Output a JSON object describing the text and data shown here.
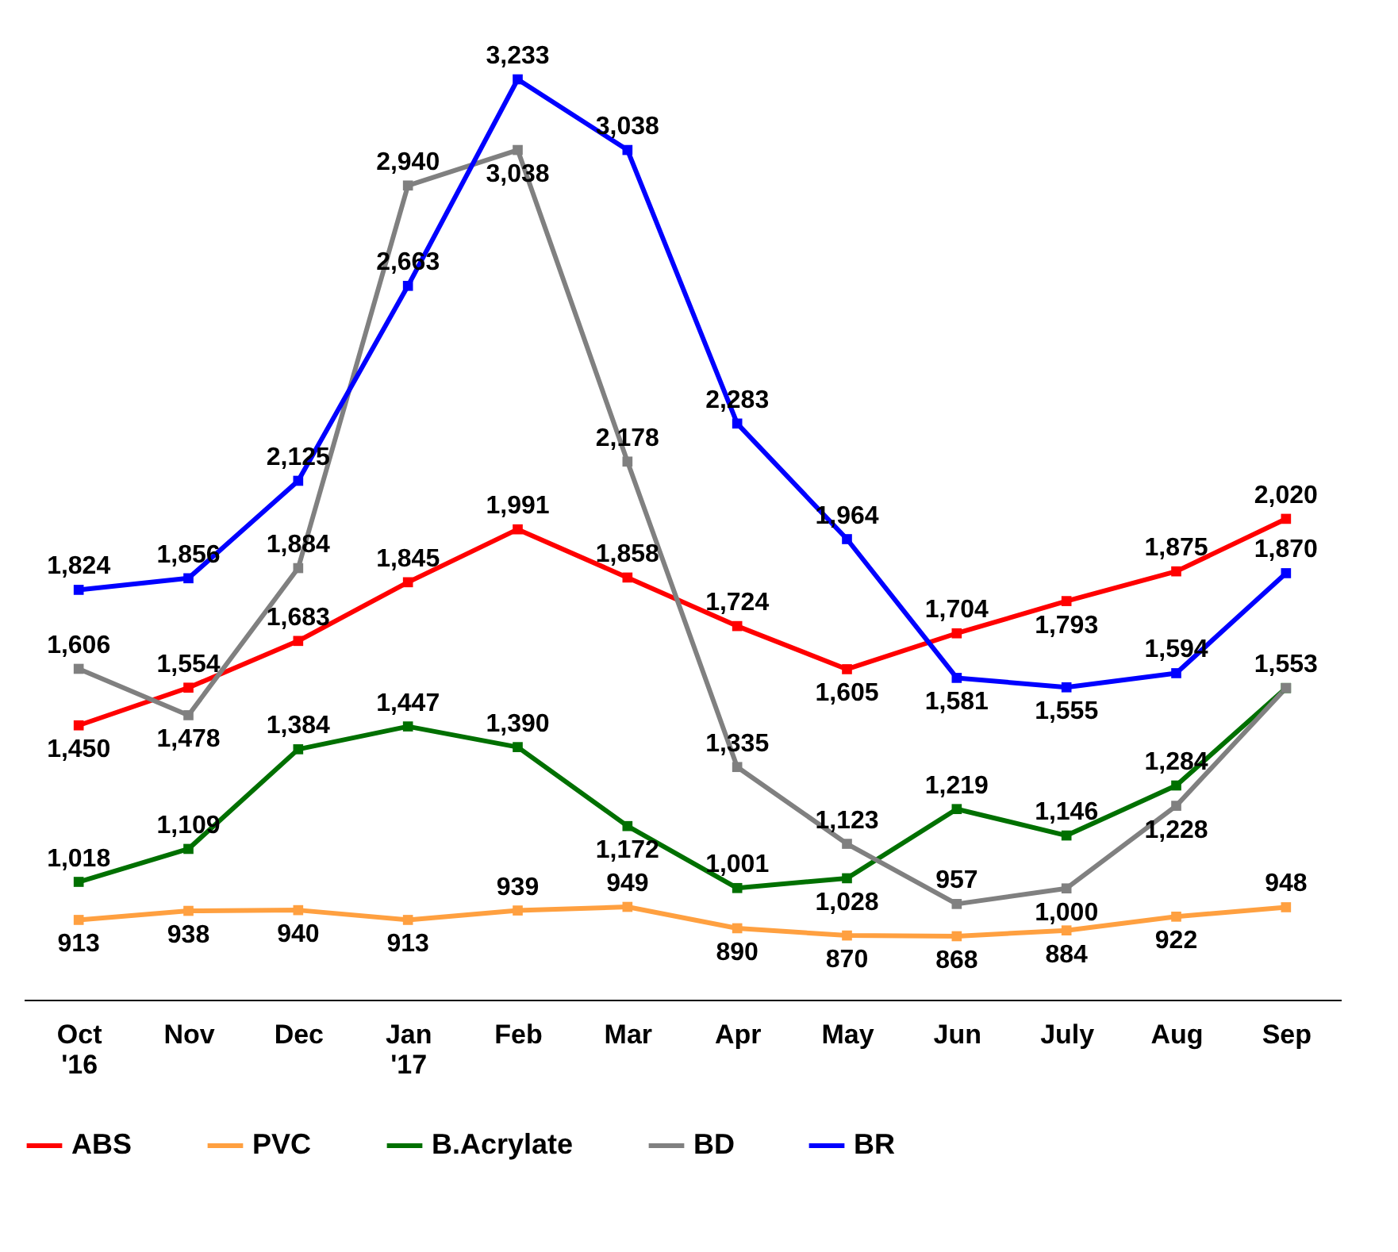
{
  "chart_data": {
    "type": "line",
    "categories": [
      "Oct '16",
      "Nov",
      "Dec",
      "Jan '17",
      "Feb",
      "Mar",
      "Apr",
      "May",
      "Jun",
      "July",
      "Aug",
      "Sep"
    ],
    "series": [
      {
        "name": "ABS",
        "color": "#ff0000",
        "values": [
          1450,
          1554,
          1683,
          1845,
          1991,
          1858,
          1724,
          1605,
          1704,
          1793,
          1875,
          2020
        ],
        "value_labels": [
          "1,450",
          "1,554",
          "1,683",
          "1,845",
          "1,991",
          "1,858",
          "1,724",
          "1,605",
          "1,704",
          "1,793",
          "1,875",
          "2,020"
        ]
      },
      {
        "name": "PVC",
        "color": "#ffa040",
        "values": [
          913,
          938,
          940,
          913,
          939,
          949,
          890,
          870,
          868,
          884,
          922,
          948
        ],
        "value_labels": [
          "913",
          "938",
          "940",
          "913",
          "939",
          "949",
          "890",
          "870",
          "868",
          "884",
          "922",
          "948"
        ]
      },
      {
        "name": "B.Acrylate",
        "color": "#007000",
        "values": [
          1018,
          1109,
          1384,
          1447,
          1390,
          1172,
          1001,
          1028,
          1219,
          1146,
          1284,
          1553
        ],
        "value_labels": [
          "1,018",
          "1,109",
          "1,384",
          "1,447",
          "1,390",
          "1,172",
          "1,001",
          "1,028",
          "1,219",
          "1,146",
          "1,284",
          "1,553"
        ]
      },
      {
        "name": "BD",
        "color": "#808080",
        "values": [
          1606,
          1478,
          1884,
          2940,
          3038,
          2178,
          1335,
          1123,
          957,
          1000,
          1228,
          1553
        ],
        "value_labels": [
          "1,606",
          "1,478",
          "1,884",
          "2,940",
          "3,038",
          "2,178",
          "1,335",
          "1,123",
          "957",
          "1,000",
          "1,228",
          null
        ]
      },
      {
        "name": "BR",
        "color": "#0000ff",
        "values": [
          1824,
          1856,
          2125,
          2663,
          3233,
          3038,
          2283,
          1964,
          1581,
          1555,
          1594,
          1870
        ],
        "value_labels": [
          "1,824",
          "1,856",
          "2,125",
          "2,663",
          "3,233",
          "3,038",
          "2,283",
          "1,964",
          "1,581",
          "1,555",
          "1,594",
          "1,870"
        ]
      }
    ],
    "marker": "square",
    "line_style": "solid",
    "legend": "bottom",
    "tick_labels": "x"
  }
}
